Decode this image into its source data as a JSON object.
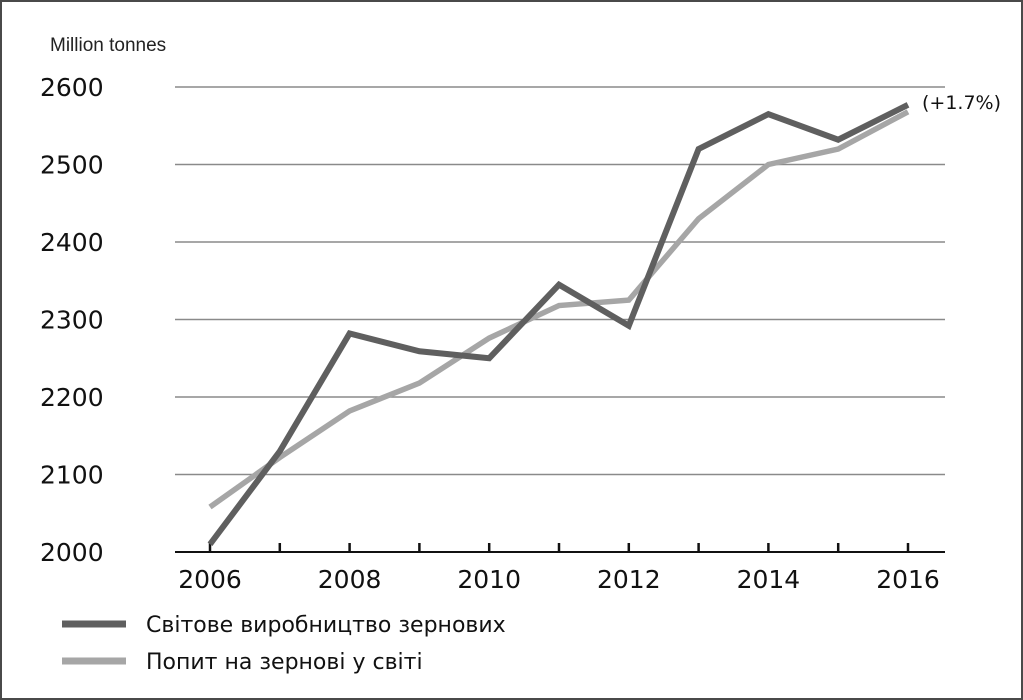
{
  "chart_data": {
    "type": "line",
    "unit_label": "Million tonnes",
    "x": [
      2006,
      2007,
      2008,
      2009,
      2010,
      2011,
      2012,
      2013,
      2014,
      2015,
      2016
    ],
    "xticks": [
      "2006",
      "2008",
      "2010",
      "2012",
      "2014",
      "2016"
    ],
    "yticks": [
      "2000",
      "2100",
      "2200",
      "2300",
      "2400",
      "2500",
      "2600"
    ],
    "ylim": [
      2000,
      2600
    ],
    "grid": true,
    "legend_position": "bottom-left",
    "series": [
      {
        "name": "Світове виробництво зернових",
        "color": "#5f5f5f",
        "values": [
          2010,
          2130,
          2282,
          2259,
          2250,
          2345,
          2292,
          2520,
          2565,
          2532,
          2577
        ]
      },
      {
        "name": "Попит на зернові у світі",
        "color": "#a6a6a6",
        "values": [
          2058,
          2122,
          2182,
          2218,
          2276,
          2318,
          2325,
          2430,
          2500,
          2520,
          2568
        ]
      }
    ],
    "annotation": "(+1.7%)"
  }
}
